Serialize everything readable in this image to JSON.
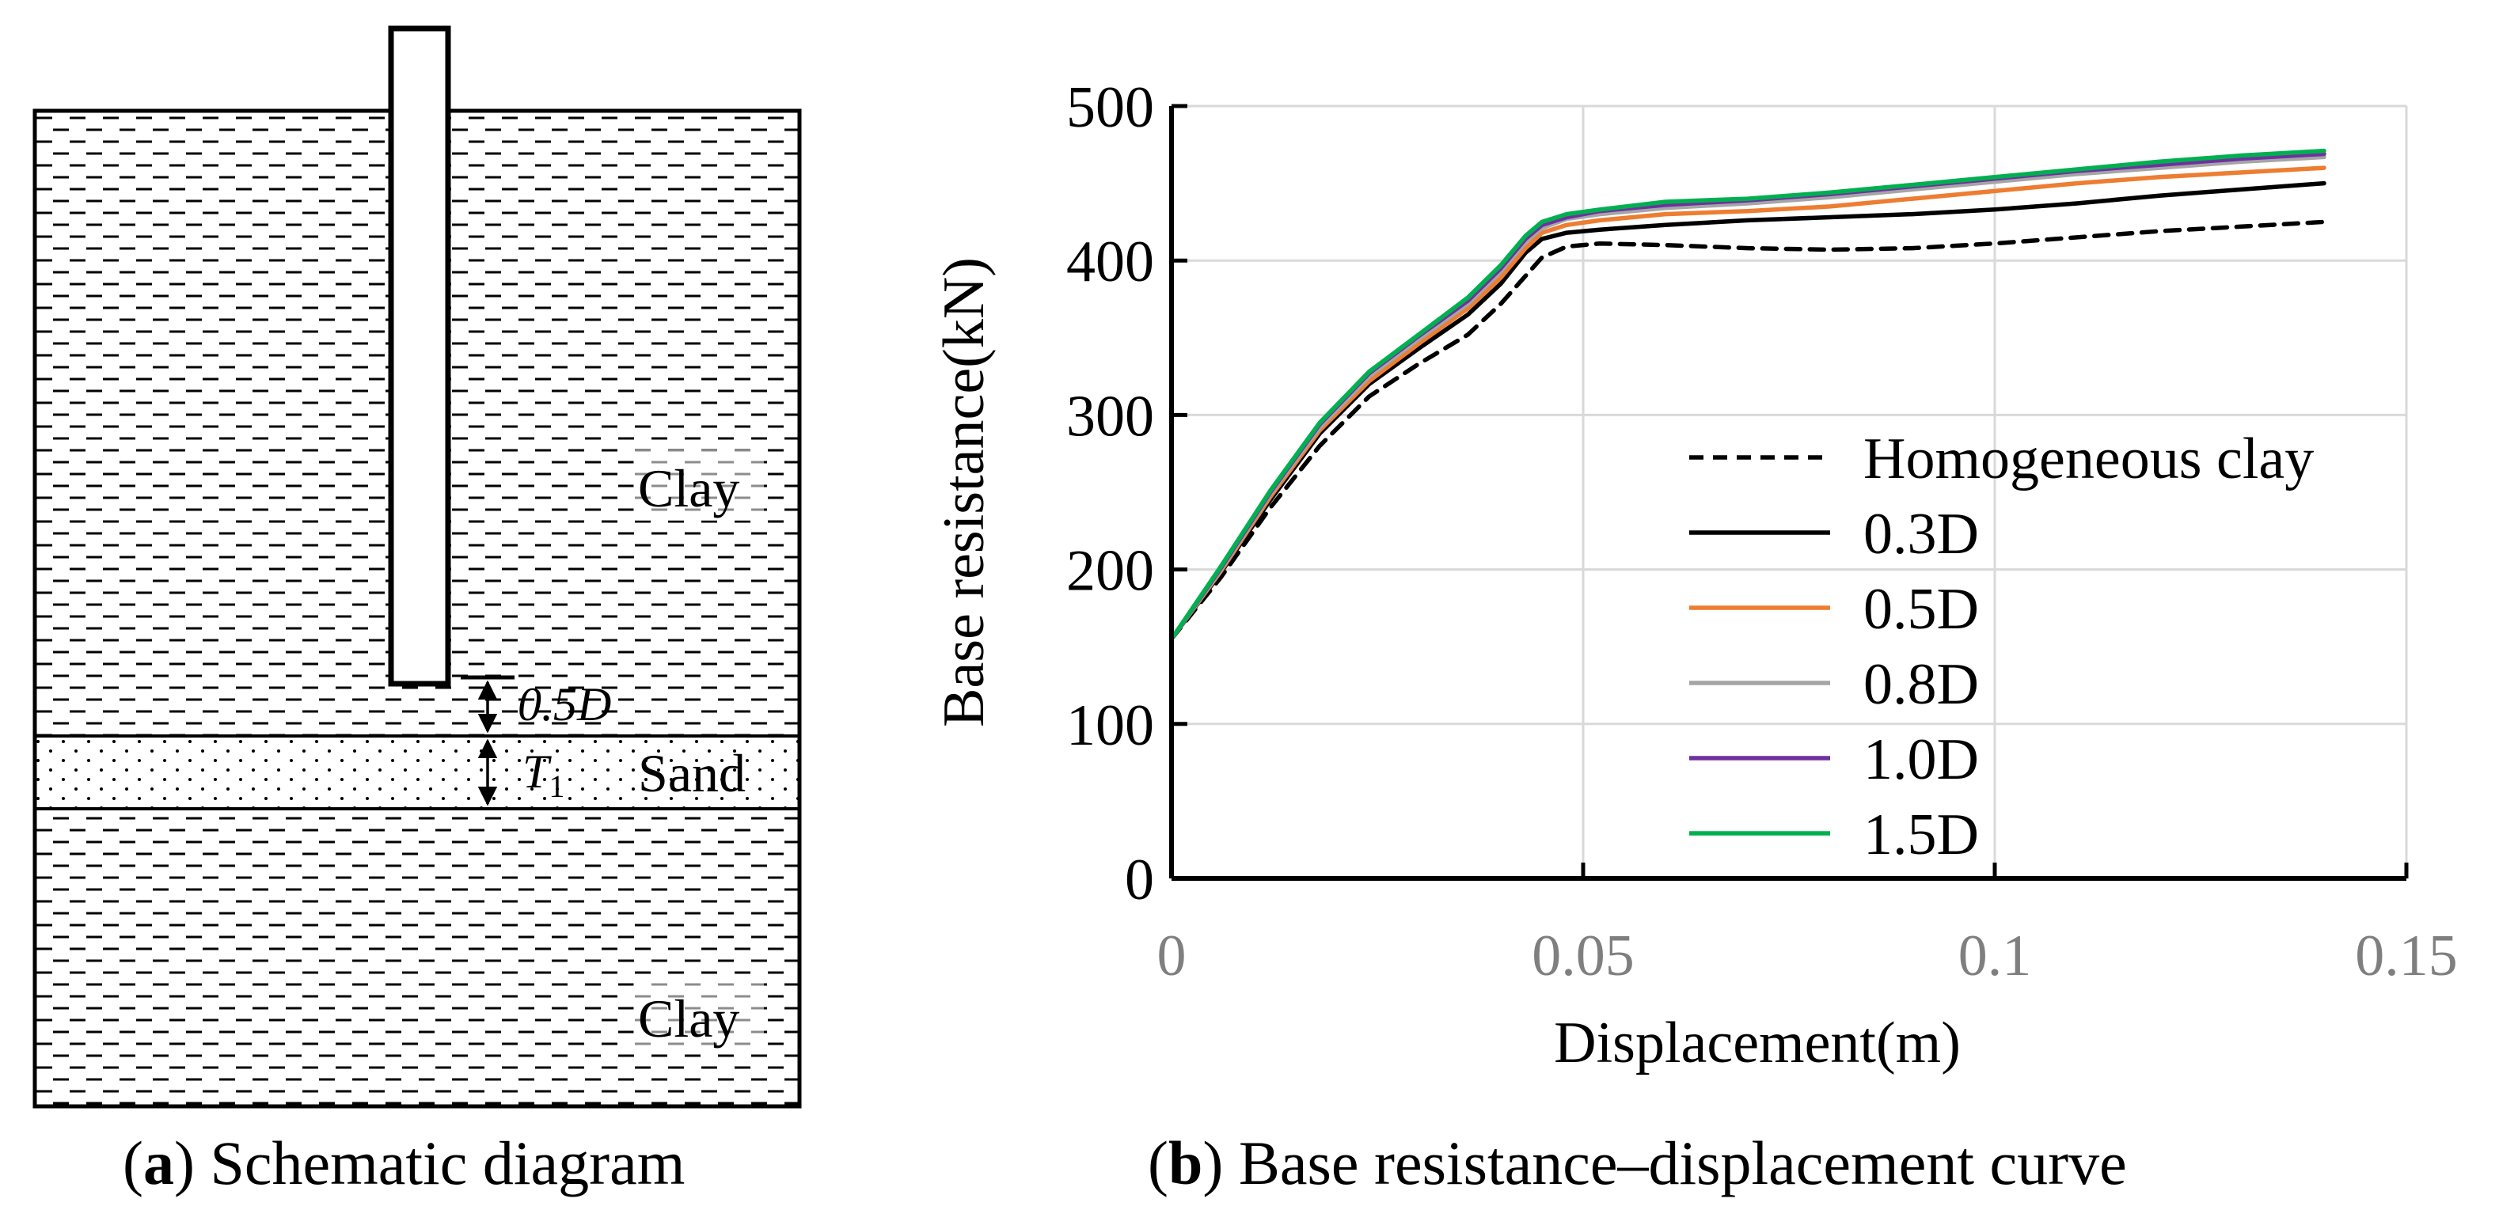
{
  "panel_a": {
    "labels": {
      "clay_top": "Clay",
      "clay_bottom": "Clay",
      "sand": "Sand",
      "offset_label": "0.5D",
      "thickness_label": "T",
      "thickness_subscript": "1"
    },
    "caption_letter": "a",
    "caption_text": " Schematic diagram"
  },
  "panel_b": {
    "caption_letter": "b",
    "caption_text": " Base resistance–displacement curve"
  },
  "chart_data": {
    "type": "line",
    "title": "",
    "xlabel": "Displacement(m)",
    "ylabel": "Base resistance(kN)",
    "xlim": [
      0,
      0.15
    ],
    "ylim": [
      0,
      500
    ],
    "xticks": [
      0,
      0.05,
      0.1,
      0.15
    ],
    "xtick_labels": [
      "0",
      "0.05",
      "0.1",
      "0.15"
    ],
    "yticks": [
      0,
      100,
      200,
      300,
      400,
      500
    ],
    "ytick_labels": [
      "0",
      "100",
      "200",
      "300",
      "400",
      "500"
    ],
    "grid": true,
    "legend_position": "center-right",
    "series": [
      {
        "name": "Homogeneous clay",
        "color": "#000000",
        "dashed": true,
        "points": [
          [
            0,
            155
          ],
          [
            0.006,
            195
          ],
          [
            0.012,
            240
          ],
          [
            0.018,
            280
          ],
          [
            0.024,
            312
          ],
          [
            0.03,
            333
          ],
          [
            0.036,
            352
          ],
          [
            0.04,
            372
          ],
          [
            0.043,
            390
          ],
          [
            0.045,
            402
          ],
          [
            0.048,
            409
          ],
          [
            0.052,
            411
          ],
          [
            0.06,
            410
          ],
          [
            0.07,
            408
          ],
          [
            0.08,
            407
          ],
          [
            0.09,
            408
          ],
          [
            0.1,
            411
          ],
          [
            0.11,
            415
          ],
          [
            0.12,
            419
          ],
          [
            0.13,
            422
          ],
          [
            0.14,
            425
          ]
        ]
      },
      {
        "name": "0.3D",
        "color": "#000000",
        "dashed": false,
        "points": [
          [
            0,
            155
          ],
          [
            0.006,
            198
          ],
          [
            0.012,
            245
          ],
          [
            0.018,
            288
          ],
          [
            0.024,
            320
          ],
          [
            0.03,
            343
          ],
          [
            0.036,
            365
          ],
          [
            0.04,
            385
          ],
          [
            0.043,
            405
          ],
          [
            0.045,
            414
          ],
          [
            0.048,
            418
          ],
          [
            0.052,
            420
          ],
          [
            0.06,
            423
          ],
          [
            0.07,
            426
          ],
          [
            0.08,
            428
          ],
          [
            0.09,
            430
          ],
          [
            0.1,
            433
          ],
          [
            0.11,
            437
          ],
          [
            0.12,
            442
          ],
          [
            0.13,
            446
          ],
          [
            0.14,
            450
          ]
        ]
      },
      {
        "name": "0.5D",
        "color": "#ed7d31",
        "dashed": false,
        "points": [
          [
            0,
            155
          ],
          [
            0.006,
            199
          ],
          [
            0.012,
            247
          ],
          [
            0.018,
            290
          ],
          [
            0.024,
            322
          ],
          [
            0.03,
            346
          ],
          [
            0.036,
            369
          ],
          [
            0.04,
            389
          ],
          [
            0.043,
            408
          ],
          [
            0.045,
            418
          ],
          [
            0.048,
            423
          ],
          [
            0.052,
            426
          ],
          [
            0.06,
            430
          ],
          [
            0.07,
            432
          ],
          [
            0.08,
            435
          ],
          [
            0.09,
            440
          ],
          [
            0.1,
            445
          ],
          [
            0.11,
            450
          ],
          [
            0.12,
            454
          ],
          [
            0.13,
            457
          ],
          [
            0.14,
            460
          ]
        ]
      },
      {
        "name": "0.8D",
        "color": "#a5a5a5",
        "dashed": false,
        "points": [
          [
            0,
            155
          ],
          [
            0.006,
            200
          ],
          [
            0.012,
            249
          ],
          [
            0.018,
            292
          ],
          [
            0.024,
            325
          ],
          [
            0.03,
            349
          ],
          [
            0.036,
            372
          ],
          [
            0.04,
            393
          ],
          [
            0.043,
            412
          ],
          [
            0.045,
            421
          ],
          [
            0.048,
            427
          ],
          [
            0.052,
            430
          ],
          [
            0.06,
            434
          ],
          [
            0.07,
            437
          ],
          [
            0.08,
            441
          ],
          [
            0.09,
            446
          ],
          [
            0.1,
            451
          ],
          [
            0.11,
            456
          ],
          [
            0.12,
            460
          ],
          [
            0.13,
            464
          ],
          [
            0.14,
            467
          ]
        ]
      },
      {
        "name": "1.0D",
        "color": "#7030a0",
        "dashed": false,
        "points": [
          [
            0,
            155
          ],
          [
            0.006,
            201
          ],
          [
            0.012,
            250
          ],
          [
            0.018,
            294
          ],
          [
            0.024,
            327
          ],
          [
            0.03,
            351
          ],
          [
            0.036,
            374
          ],
          [
            0.04,
            395
          ],
          [
            0.043,
            414
          ],
          [
            0.045,
            423
          ],
          [
            0.048,
            428
          ],
          [
            0.052,
            432
          ],
          [
            0.06,
            436
          ],
          [
            0.07,
            439
          ],
          [
            0.08,
            443
          ],
          [
            0.09,
            448
          ],
          [
            0.1,
            453
          ],
          [
            0.11,
            458
          ],
          [
            0.12,
            462
          ],
          [
            0.13,
            466
          ],
          [
            0.14,
            469
          ]
        ]
      },
      {
        "name": "1.5D",
        "color": "#00b050",
        "dashed": false,
        "points": [
          [
            0,
            155
          ],
          [
            0.006,
            202
          ],
          [
            0.012,
            251
          ],
          [
            0.018,
            295
          ],
          [
            0.024,
            328
          ],
          [
            0.03,
            352
          ],
          [
            0.036,
            376
          ],
          [
            0.04,
            397
          ],
          [
            0.043,
            416
          ],
          [
            0.045,
            425
          ],
          [
            0.048,
            430
          ],
          [
            0.052,
            433
          ],
          [
            0.06,
            438
          ],
          [
            0.07,
            440
          ],
          [
            0.08,
            444
          ],
          [
            0.09,
            449
          ],
          [
            0.1,
            454
          ],
          [
            0.11,
            459
          ],
          [
            0.12,
            464
          ],
          [
            0.13,
            468
          ],
          [
            0.14,
            471
          ]
        ]
      }
    ]
  }
}
